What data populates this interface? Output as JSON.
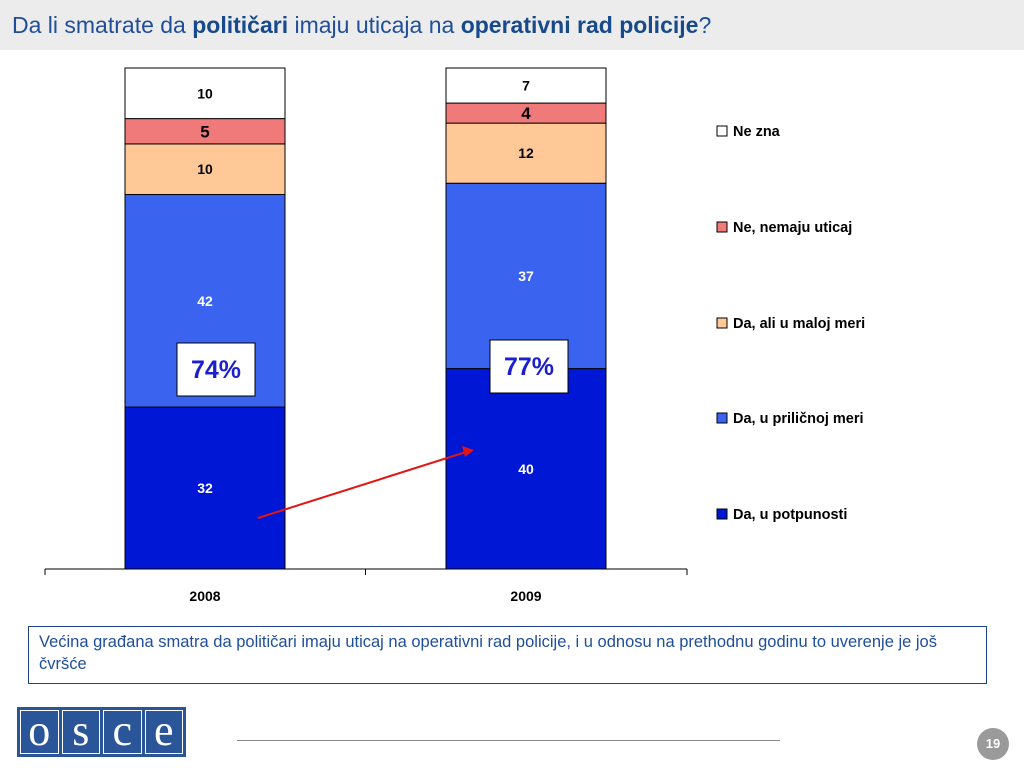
{
  "title": {
    "part1": "Da li smatrate da ",
    "bold1": "političari",
    "part2": " imaju uticaja na ",
    "bold2": "operativni rad policije",
    "part3": "?"
  },
  "chart_data": {
    "type": "bar",
    "stacked": true,
    "categories": [
      "2008",
      "2009"
    ],
    "series": [
      {
        "name": "Da, u potpunosti",
        "values": [
          32,
          40
        ],
        "color": "#0018d6",
        "label_color": "#ffffff"
      },
      {
        "name": "Da, u priličnoj meri",
        "values": [
          42,
          37
        ],
        "color": "#3a64f0",
        "label_color": "#ffffff"
      },
      {
        "name": "Da, ali u maloj meri",
        "values": [
          10,
          12
        ],
        "color": "#ffc896",
        "label_color": "#000000"
      },
      {
        "name": "Ne, nemaju uticaj",
        "values": [
          5,
          4
        ],
        "color": "#f07a7a",
        "label_color": "#000000"
      },
      {
        "name": "Ne zna",
        "values": [
          10,
          7
        ],
        "color": "#ffffff",
        "label_color": "#000000"
      }
    ],
    "callouts": [
      "74%",
      "77%"
    ],
    "callout_color": "#1a1fd0",
    "arrow_color": "#e01515",
    "legend_position": "right",
    "grid": false
  },
  "summary_text": "Većina građana smatra da političari imaju uticaj na operativni rad policije, i u odnosu na prethodnu godinu to uverenje je još čvršće",
  "logo": {
    "letters": [
      "o",
      "s",
      "c",
      "e"
    ],
    "brand_color": "#2a5599"
  },
  "page_number": "19"
}
